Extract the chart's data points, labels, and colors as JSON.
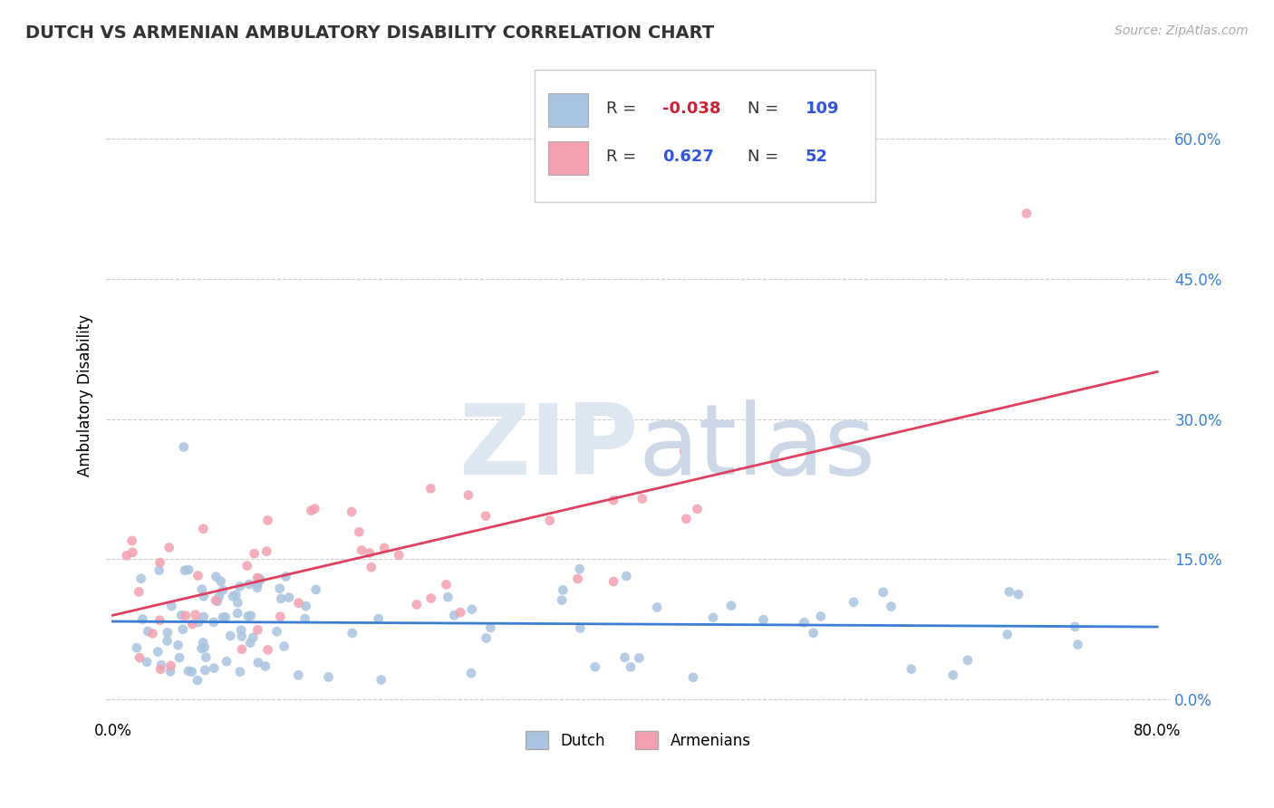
{
  "title": "DUTCH VS ARMENIAN AMBULATORY DISABILITY CORRELATION CHART",
  "source": "Source: ZipAtlas.com",
  "ylabel": "Ambulatory Disability",
  "dutch_color": "#a8c4e0",
  "armenian_color": "#f4a0b0",
  "dutch_line_color": "#3a7fd5",
  "armenian_line_color": "#e04060",
  "legend_r": [
    -0.038,
    0.627
  ],
  "legend_n": [
    109,
    52
  ],
  "ytick_vals": [
    0.0,
    0.15,
    0.3,
    0.45,
    0.6
  ],
  "ytick_labels": [
    "0.0%",
    "15.0%",
    "30.0%",
    "45.0%",
    "60.0%"
  ],
  "xtick_vals": [
    0.0,
    0.8
  ],
  "xtick_labels": [
    "0.0%",
    "80.0%"
  ]
}
